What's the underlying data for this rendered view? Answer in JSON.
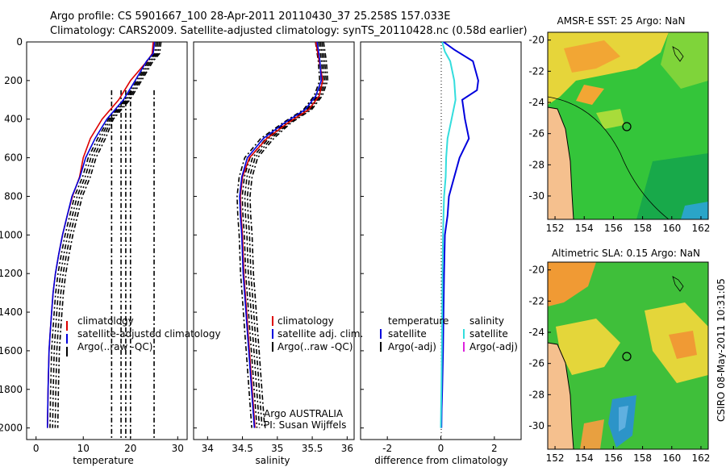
{
  "header": {
    "line1": "Argo profile: CS 5901667_100 28-Apr-2011 20110430_37 25.258S 157.033E",
    "line2": "Climatology: CARS2009. Satellite-adjusted climatology: synTS_20110428.nc (0.58d earlier)"
  },
  "colors": {
    "climatology": "#dd0000",
    "satellite": "#0000dd",
    "argo": "#000000",
    "sal_satellite": "#33dddd",
    "sal_argo": "#dd22dd",
    "land": "#f5c08e"
  },
  "chart_data": [
    {
      "id": "temperature",
      "type": "line",
      "xlabel": "temperature",
      "ylabel": "",
      "xlim": [
        -2,
        32
      ],
      "ylim": [
        2060,
        0
      ],
      "y_reversed": true,
      "xticks": [
        "0",
        "10",
        "20",
        "30"
      ],
      "yticks": [
        "0",
        "200",
        "400",
        "600",
        "800",
        "1000",
        "1200",
        "1400",
        "1600",
        "1800",
        "2000"
      ],
      "legend": [
        "climatology",
        "satellite-adjusted climatology",
        "Argo(..raw -QC)"
      ],
      "series": [
        {
          "name": "climatology",
          "color": "#dd0000",
          "x": [
            24.8,
            24.6,
            23.5,
            20,
            17.5,
            14,
            11.5,
            10,
            9.2,
            7.7,
            6.6,
            5.6,
            4.8,
            4.1,
            3.6,
            3.3,
            3.0,
            2.75,
            2.55,
            2.4
          ],
          "y": [
            0,
            60,
            100,
            200,
            300,
            400,
            500,
            600,
            700,
            800,
            900,
            1000,
            1100,
            1200,
            1300,
            1400,
            1500,
            1600,
            1800,
            2000
          ]
        },
        {
          "name": "satellite",
          "color": "#0000dd",
          "x": [
            25.1,
            24.8,
            23.4,
            21,
            18.5,
            15,
            12.5,
            10.5,
            9.3,
            7.6,
            6.6,
            5.6,
            4.8,
            4.1,
            3.6,
            3.3,
            3.0,
            2.75,
            2.55,
            2.4
          ],
          "y": [
            0,
            60,
            100,
            200,
            300,
            400,
            500,
            600,
            700,
            800,
            900,
            1000,
            1100,
            1200,
            1300,
            1400,
            1500,
            1600,
            1800,
            2000
          ]
        }
      ]
    },
    {
      "id": "salinity",
      "type": "line",
      "xlabel": "salinity",
      "ylabel": "",
      "xlim": [
        33.8,
        36.1
      ],
      "ylim": [
        2060,
        0
      ],
      "y_reversed": true,
      "xticks": [
        "34",
        "34.5",
        "35",
        "35.5",
        "36"
      ],
      "legend": [
        "climatology",
        "satellite adj. clim.",
        "Argo(..raw -QC)"
      ],
      "series": [
        {
          "name": "climatology",
          "color": "#dd0000",
          "x": [
            35.55,
            35.6,
            35.65,
            35.6,
            35.45,
            35.15,
            34.85,
            34.6,
            34.5,
            34.47,
            34.48,
            34.5,
            34.52,
            34.54,
            34.56,
            34.58,
            34.6,
            34.62,
            34.65,
            34.68
          ],
          "y": [
            0,
            100,
            200,
            280,
            350,
            420,
            500,
            600,
            700,
            800,
            900,
            1000,
            1200,
            1300,
            1400,
            1500,
            1600,
            1700,
            1850,
            2000
          ]
        },
        {
          "name": "satellite",
          "color": "#0000dd",
          "x": [
            35.57,
            35.61,
            35.63,
            35.55,
            35.4,
            35.1,
            34.8,
            34.57,
            34.49,
            34.46,
            34.47,
            34.49,
            34.51,
            34.53,
            34.55,
            34.57,
            34.59,
            34.61,
            34.64,
            34.67
          ],
          "y": [
            0,
            100,
            200,
            280,
            350,
            420,
            500,
            600,
            700,
            800,
            900,
            1000,
            1200,
            1300,
            1400,
            1500,
            1600,
            1700,
            1850,
            2000
          ]
        }
      ],
      "annotation": [
        "Argo AUSTRALIA",
        "PI: Susan Wijffels"
      ]
    },
    {
      "id": "difference",
      "type": "line",
      "xlabel": "difference from climatology",
      "ylabel": "",
      "xlim": [
        -3,
        3
      ],
      "ylim": [
        2060,
        0
      ],
      "y_reversed": true,
      "xticks": [
        "-2",
        "0",
        "2"
      ],
      "legend_left": [
        "temperature",
        "satellite",
        "Argo(-adj)"
      ],
      "legend_right": [
        "salinity",
        "satellite",
        "Argo(-adj)"
      ],
      "series": [
        {
          "name": "temperature satellite",
          "color": "#0000dd",
          "x": [
            0.1,
            0.5,
            1.2,
            1.4,
            1.35,
            0.8,
            0.9,
            1.05,
            0.7,
            0.5,
            0.3,
            0.25,
            0.15,
            0.12,
            0.1,
            0.08,
            0.05,
            0.03,
            0.02
          ],
          "y": [
            0,
            40,
            100,
            200,
            250,
            300,
            400,
            500,
            600,
            700,
            800,
            900,
            1000,
            1200,
            1400,
            1600,
            1800,
            1900,
            2000
          ]
        },
        {
          "name": "salinity satellite",
          "color": "#33dddd",
          "x": [
            0.05,
            0.15,
            0.35,
            0.5,
            0.55,
            0.4,
            0.25,
            0.2,
            0.18,
            0.12,
            0.1,
            0.08,
            0.06,
            0.05,
            0.04,
            0.02,
            0.01,
            0.0
          ],
          "y": [
            0,
            50,
            100,
            200,
            300,
            400,
            500,
            600,
            700,
            800,
            900,
            1000,
            1200,
            1400,
            1600,
            1800,
            1900,
            2000
          ]
        }
      ]
    }
  ],
  "maps": [
    {
      "title": "AMSR-E SST: 25 Argo: NaN",
      "xticks": [
        "152",
        "154",
        "156",
        "158",
        "160",
        "162"
      ],
      "yticks": [
        "-20",
        "-22",
        "-24",
        "-26",
        "-28",
        "-30"
      ],
      "lon_range": [
        151.5,
        162.5
      ],
      "lat_range": [
        -19.5,
        -31.5
      ],
      "marker": {
        "lon": 157.03,
        "lat": -25.26
      }
    },
    {
      "title": "Altimetric SLA: 0.15 Argo: NaN",
      "xticks": [
        "152",
        "154",
        "156",
        "158",
        "160",
        "162"
      ],
      "yticks": [
        "-20",
        "-22",
        "-24",
        "-26",
        "-28",
        "-30"
      ],
      "lon_range": [
        151.5,
        162.5
      ],
      "lat_range": [
        -19.5,
        -31.5
      ],
      "marker": {
        "lon": 157.03,
        "lat": -25.26
      }
    }
  ],
  "footer": {
    "credit": "CSIRO 08-May-2011 10:31:05"
  }
}
